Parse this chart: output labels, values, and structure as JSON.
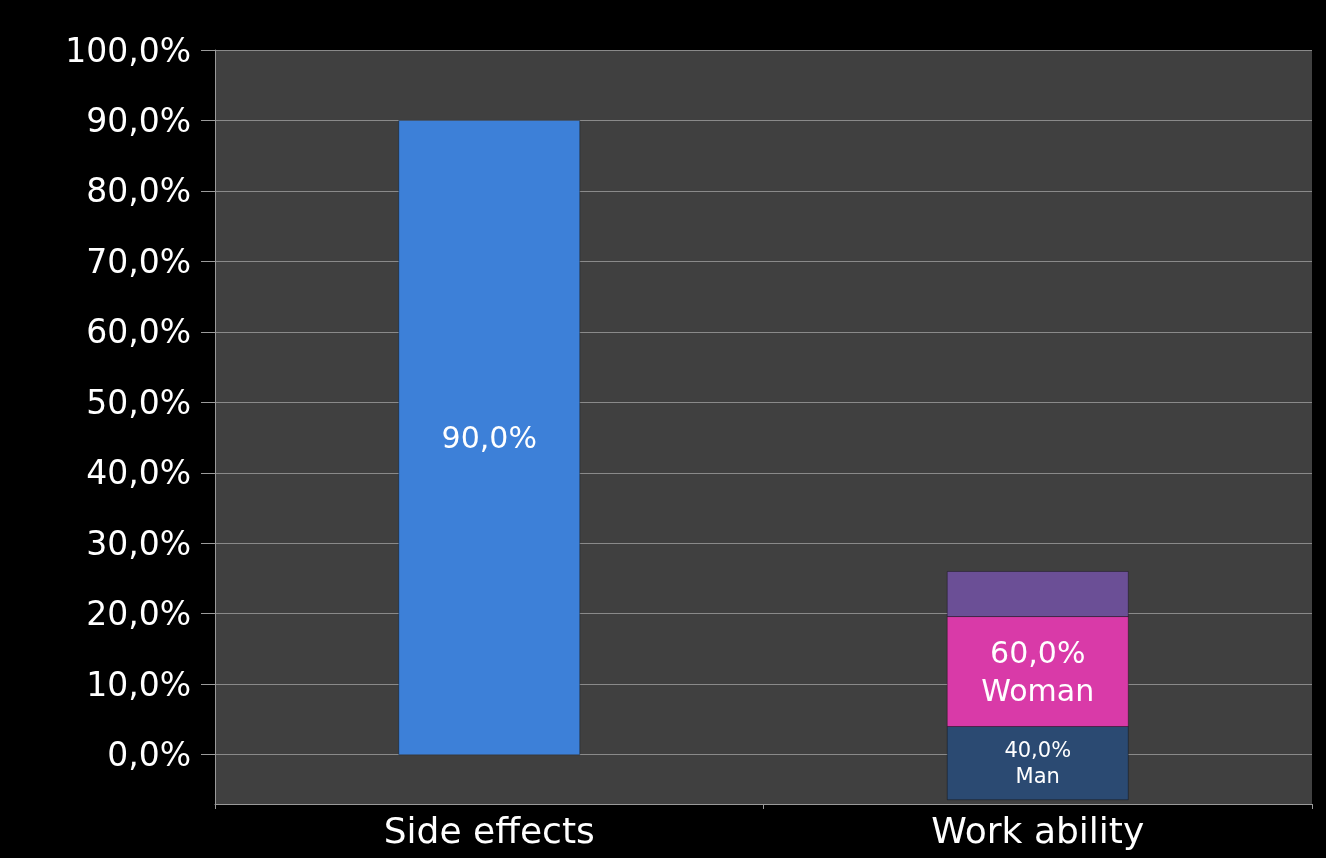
{
  "chart_data": {
    "type": "bar",
    "categories": [
      "Side effects",
      "Work ability"
    ],
    "stacked": true,
    "series": [
      {
        "color": "#3d80d8",
        "values": [
          90,
          null
        ],
        "value_labels": [
          "90,0%",
          null
        ]
      },
      {
        "name": "Man",
        "color": "#2b4a72",
        "base": [
          null,
          -6.4
        ],
        "values": [
          null,
          10.4
        ]
      },
      {
        "name": "Woman",
        "color": "#d93aa8",
        "values": [
          null,
          15.6
        ]
      },
      {
        "color": "#6b4f96",
        "values": [
          null,
          6.4
        ]
      }
    ],
    "annotations": [
      "40,0%",
      "60,0%"
    ],
    "ylim": [
      -7,
      100
    ],
    "yticks": [
      {
        "value": 0,
        "label": "0,0%"
      },
      {
        "value": 10,
        "label": "10,0%"
      },
      {
        "value": 20,
        "label": "20,0%"
      },
      {
        "value": 30,
        "label": "30,0%"
      },
      {
        "value": 40,
        "label": "40,0%"
      },
      {
        "value": 50,
        "label": "50,0%"
      },
      {
        "value": 60,
        "label": "60,0%"
      },
      {
        "value": 70,
        "label": "70,0%"
      },
      {
        "value": 80,
        "label": "80,0%"
      },
      {
        "value": 90,
        "label": "90,0%"
      },
      {
        "value": 100,
        "label": "100,0%"
      }
    ],
    "grid": "y",
    "legend": false
  }
}
